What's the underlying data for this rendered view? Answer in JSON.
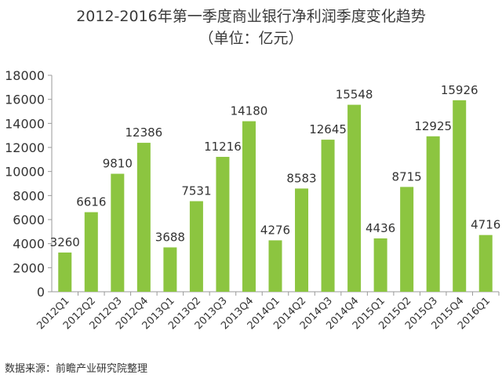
{
  "chart_data": {
    "type": "bar",
    "title": "2012-2016年第一季度商业银行净利润季度变化趋势",
    "subtitle": "（单位：亿元）",
    "xlabel": "",
    "ylabel": "",
    "ylim": [
      0,
      18000
    ],
    "yticks": [
      "0",
      "2000",
      "4000",
      "6000",
      "8000",
      "10000",
      "12000",
      "14000",
      "16000",
      "18000"
    ],
    "grid": false,
    "bar_color": "#8cc540",
    "categories": [
      "2012Q1",
      "2012Q2",
      "2012Q3",
      "2012Q4",
      "2013Q1",
      "2013Q2",
      "2013Q3",
      "2013Q4",
      "2014Q1",
      "2014Q2",
      "2014Q3",
      "2014Q4",
      "2015Q1",
      "2015Q2",
      "2015Q3",
      "2015Q4",
      "2016Q1"
    ],
    "values": [
      3260,
      6616,
      9810,
      12386,
      3688,
      7531,
      11216,
      14180,
      4276,
      8583,
      12645,
      15548,
      4436,
      8715,
      12925,
      15926,
      4716
    ],
    "data_labels": [
      "3260",
      "6616",
      "9810",
      "12386",
      "3688",
      "7531",
      "11216",
      "14180",
      "4276",
      "8583",
      "12645",
      "15548",
      "4436",
      "8715",
      "12925",
      "15926",
      "4716"
    ]
  },
  "source": "数据来源：前瞻产业研究院整理"
}
